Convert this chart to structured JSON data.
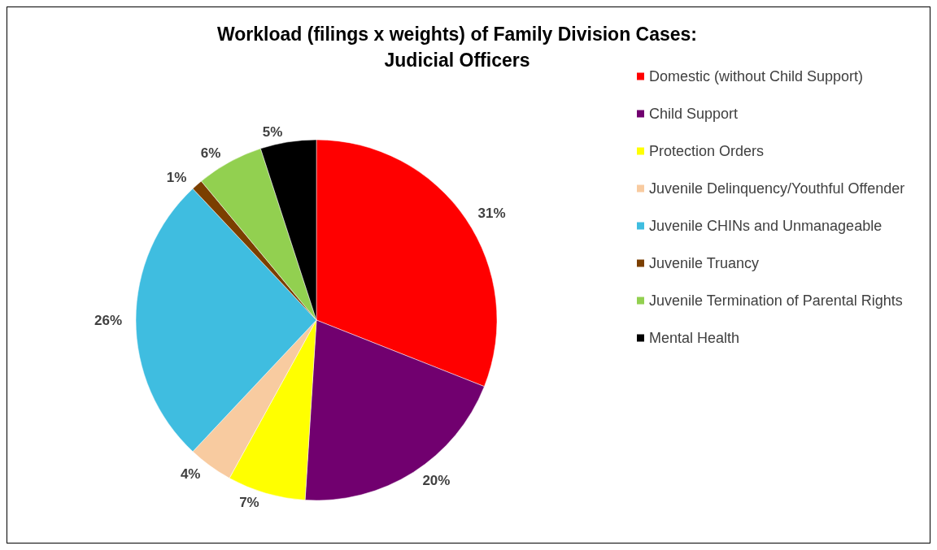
{
  "chart_data": {
    "type": "pie",
    "title": "Workload (filings x weights) of Family Division Cases:\nJudicial Officers",
    "categories": [
      "Domestic (without Child Support)",
      "Child Support",
      "Protection Orders",
      "Juvenile Delinquency/Youthful Offender",
      "Juvenile CHINs and Unmanageable",
      "Juvenile Truancy",
      "Juvenile Termination of Parental Rights",
      "Mental Health"
    ],
    "values": [
      31,
      20,
      7,
      4,
      26,
      1,
      6,
      5
    ],
    "value_labels": [
      "31%",
      "20%",
      "7%",
      "4%",
      "26%",
      "1%",
      "6%",
      "5%"
    ],
    "colors": [
      "#ff0000",
      "#71006f",
      "#ffff00",
      "#f8cba0",
      "#3fbde0",
      "#7b3f00",
      "#92d050",
      "#000000"
    ],
    "legend": "right"
  }
}
